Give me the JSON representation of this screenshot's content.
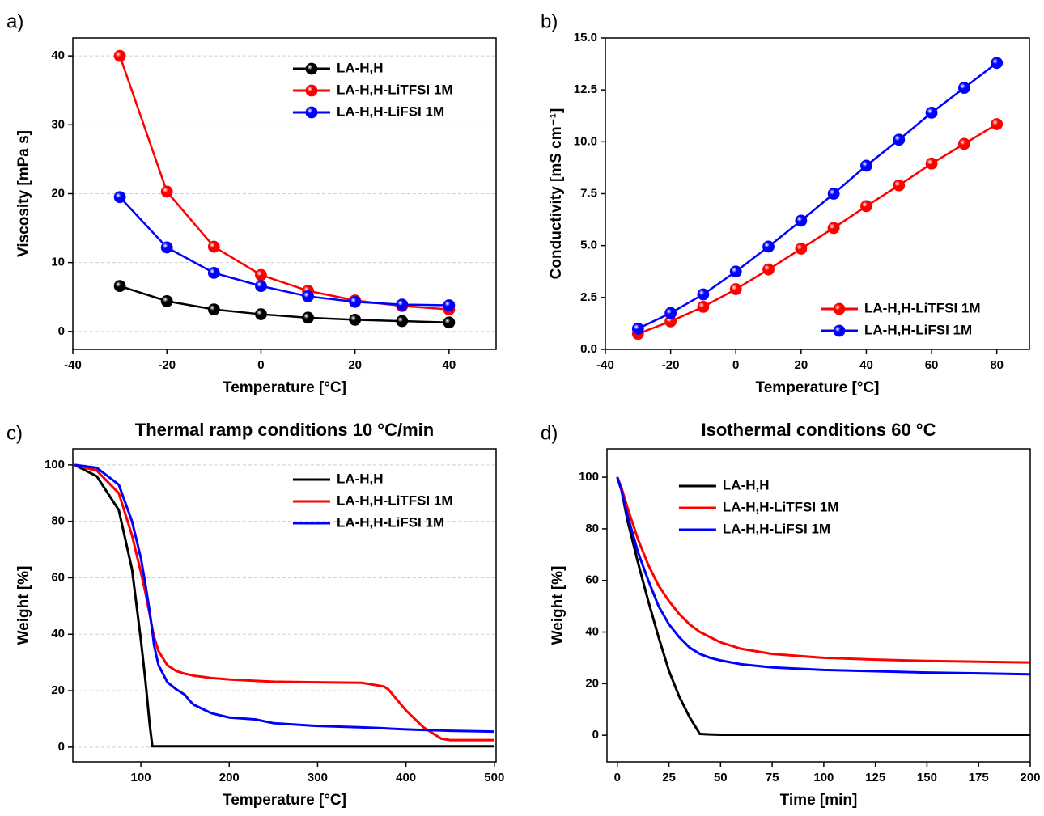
{
  "chart_data": [
    {
      "type": "line",
      "panel_label": "a)",
      "xlabel": "Temperature [°C]",
      "ylabel": "Viscosity [mPa s]",
      "x": [
        -30,
        -20,
        -10,
        0,
        10,
        20,
        30,
        40
      ],
      "series": [
        {
          "name": "LA-H,H",
          "color": "#000000",
          "values": [
            6.6,
            4.4,
            3.2,
            2.5,
            2.0,
            1.7,
            1.5,
            1.3
          ]
        },
        {
          "name": "LA-H,H-LiTFSI 1M",
          "color": "#ff0000",
          "values": [
            40.0,
            20.3,
            12.3,
            8.2,
            5.9,
            4.5,
            3.7,
            3.2
          ]
        },
        {
          "name": "LA-H,H-LiFSI 1M",
          "color": "#0000ff",
          "values": [
            19.5,
            12.2,
            8.5,
            6.6,
            5.1,
            4.3,
            3.9,
            3.8
          ]
        }
      ],
      "xlim": [
        -40,
        50
      ],
      "xticks": [
        -40,
        -20,
        0,
        20,
        40
      ],
      "ylim": [
        -2.6,
        42.6
      ],
      "yticks": [
        0,
        10,
        20,
        30,
        40
      ],
      "markers": true,
      "grid": true,
      "legend": "upper right"
    },
    {
      "type": "line",
      "panel_label": "b)",
      "xlabel": "Temperature [°C]",
      "ylabel": "Conductivity [mS cm⁻¹]",
      "x": [
        -30,
        -20,
        -10,
        0,
        10,
        20,
        30,
        40,
        50,
        60,
        70,
        80
      ],
      "series": [
        {
          "name": "LA-H,H-LiTFSI 1M",
          "color": "#ff0000",
          "values": [
            0.75,
            1.35,
            2.05,
            2.9,
            3.85,
            4.85,
            5.85,
            6.9,
            7.9,
            8.95,
            9.9,
            10.85
          ]
        },
        {
          "name": "LA-H,H-LiFSI 1M",
          "color": "#0000ff",
          "values": [
            1.0,
            1.75,
            2.65,
            3.75,
            4.95,
            6.2,
            7.5,
            8.85,
            10.1,
            11.4,
            12.6,
            13.8
          ]
        }
      ],
      "xlim": [
        -40,
        90
      ],
      "xticks": [
        -40,
        -20,
        0,
        20,
        40,
        60,
        80
      ],
      "ylim": [
        0,
        15
      ],
      "yticks": [
        {
          "value": 0,
          "label": "0.0"
        },
        2.5,
        {
          "value": 5,
          "label": "5.0"
        },
        7.5,
        {
          "value": 10,
          "label": "10.0"
        },
        12.5,
        {
          "value": 15,
          "label": "15.0"
        }
      ],
      "markers": true,
      "grid": false,
      "legend": "lower right"
    },
    {
      "type": "line",
      "panel_label": "c)",
      "title": "Thermal ramp conditions 10 °C/min",
      "xlabel": "Temperature [°C]",
      "ylabel": "Weight [%]",
      "x": [
        25,
        50,
        75,
        90,
        100,
        105,
        110,
        113,
        115,
        120,
        130,
        140,
        150,
        155,
        160,
        180,
        200,
        230,
        250,
        300,
        350,
        375,
        380,
        400,
        420,
        440,
        450,
        500
      ],
      "series": [
        {
          "name": "LA-H,H",
          "color": "#000000",
          "values": [
            100,
            96,
            84,
            63,
            38,
            24,
            8,
            0.3,
            0.3,
            0.3,
            0.3,
            0.3,
            0.3,
            0.3,
            0.3,
            0.3,
            0.3,
            0.3,
            0.3,
            0.3,
            0.3,
            0.3,
            0.3,
            0.3,
            0.3,
            0.3,
            0.3,
            0.3
          ]
        },
        {
          "name": "LA-H,H-LiTFSI 1M",
          "color": "#ff0000",
          "values": [
            100,
            98,
            90,
            75,
            62,
            55,
            47,
            42,
            39,
            34,
            29,
            27,
            26,
            25.7,
            25.3,
            24.5,
            24,
            23.5,
            23.2,
            23,
            22.8,
            21.5,
            20.5,
            13,
            7,
            3,
            2.5,
            2.5
          ]
        },
        {
          "name": "LA-H,H-LiFSI 1M",
          "color": "#0000ff",
          "values": [
            100,
            99,
            93,
            80,
            67,
            58,
            48,
            41,
            36,
            29,
            23,
            20.5,
            18.5,
            16.5,
            15,
            12,
            10.5,
            9.8,
            8.5,
            7.5,
            7,
            6.7,
            6.6,
            6.3,
            6.1,
            5.9,
            5.8,
            5.5
          ]
        }
      ],
      "xlim": [
        23,
        502
      ],
      "xticks": [
        100,
        200,
        300,
        400,
        500
      ],
      "ylim": [
        -5.2,
        105.7
      ],
      "yticks": [
        0,
        20,
        40,
        60,
        80,
        100
      ],
      "markers": false,
      "grid": true,
      "legend": "upper right"
    },
    {
      "type": "line",
      "panel_label": "d)",
      "title": "Isothermal conditions 60 °C",
      "xlabel": "Time [min]",
      "ylabel": "Weight [%]",
      "x": [
        0,
        2,
        5,
        10,
        15,
        20,
        25,
        30,
        35,
        40,
        45,
        50,
        60,
        75,
        100,
        125,
        150,
        175,
        200
      ],
      "series": [
        {
          "name": "LA-H,H",
          "color": "#000000",
          "values": [
            100,
            95,
            83,
            67,
            52,
            38,
            25,
            15,
            7,
            0.5,
            0.3,
            0.2,
            0.2,
            0.2,
            0.2,
            0.2,
            0.2,
            0.2,
            0.2
          ]
        },
        {
          "name": "LA-H,H-LiTFSI 1M",
          "color": "#ff0000",
          "values": [
            100,
            96,
            88,
            76,
            66,
            58,
            52,
            47,
            43,
            40,
            38,
            36,
            33.5,
            31.5,
            30,
            29.3,
            28.8,
            28.5,
            28.2
          ]
        },
        {
          "name": "LA-H,H-LiFSI 1M",
          "color": "#0000ff",
          "values": [
            100,
            95,
            85,
            71,
            60,
            50,
            43,
            38,
            34,
            31.5,
            30,
            29,
            27.5,
            26.3,
            25.3,
            24.8,
            24.3,
            24,
            23.6
          ]
        }
      ],
      "xlim": [
        -5,
        200
      ],
      "xticks": [
        0,
        25,
        50,
        75,
        100,
        125,
        150,
        175,
        200
      ],
      "ylim": [
        -10.3,
        111
      ],
      "yticks": [
        0,
        20,
        40,
        60,
        80,
        100
      ],
      "markers": false,
      "grid": false,
      "legend": "upper left"
    }
  ]
}
